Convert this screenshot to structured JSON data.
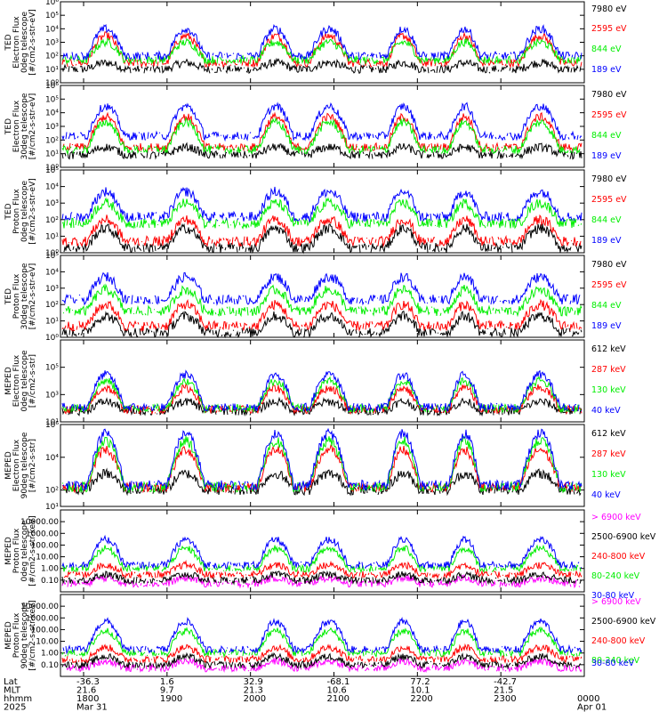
{
  "colors": {
    "blue": "#0000ff",
    "red": "#ff0000",
    "green": "#00ee00",
    "black": "#000000",
    "magenta": "#ff00ff"
  },
  "chart_data": [
    {
      "type": "line",
      "ylabel": [
        "TED",
        "Electron Flux",
        "0deg telescope",
        "[#/cm2-s-str-eV]"
      ],
      "scale": "log",
      "ylim": [
        1,
        1000000
      ],
      "ticks": [
        {
          "v": 1,
          "label": "10⁰"
        },
        {
          "v": 10,
          "label": "10¹"
        },
        {
          "v": 100,
          "label": "10²"
        },
        {
          "v": 1000,
          "label": "10³"
        },
        {
          "v": 10000,
          "label": "10⁴"
        },
        {
          "v": 100000,
          "label": "10⁵"
        },
        {
          "v": 1000000,
          "label": "10⁶"
        }
      ],
      "series": [
        {
          "name": "7980 eV",
          "color": "black",
          "base": 10,
          "peak": 30
        },
        {
          "name": "2595 eV",
          "color": "red",
          "base": 30,
          "peak": 3000
        },
        {
          "name": "844 eV",
          "color": "green",
          "base": 50,
          "peak": 1000
        },
        {
          "name": "189 eV",
          "color": "blue",
          "base": 100,
          "peak": 10000
        }
      ]
    },
    {
      "type": "line",
      "ylabel": [
        "TED",
        "Electron Flux",
        "30deg telescope",
        "[#/cm2-s-str-eV]"
      ],
      "scale": "log",
      "ylim": [
        1,
        1000000
      ],
      "ticks": [
        {
          "v": 1,
          "label": "10⁰"
        },
        {
          "v": 10,
          "label": "10¹"
        },
        {
          "v": 100,
          "label": "10²"
        },
        {
          "v": 1000,
          "label": "10³"
        },
        {
          "v": 10000,
          "label": "10⁴"
        },
        {
          "v": 100000,
          "label": "10⁵"
        },
        {
          "v": 1000000,
          "label": "10⁶"
        }
      ],
      "series": [
        {
          "name": "7980 eV",
          "color": "black",
          "base": 8,
          "peak": 30
        },
        {
          "name": "2595 eV",
          "color": "red",
          "base": 30,
          "peak": 5000
        },
        {
          "name": "844 eV",
          "color": "green",
          "base": 20,
          "peak": 2000
        },
        {
          "name": "189 eV",
          "color": "blue",
          "base": 200,
          "peak": 30000
        }
      ]
    },
    {
      "type": "line",
      "ylabel": [
        "TED",
        "Proton Flux",
        "0deg telescope",
        "[#/cm2-s-str-eV]"
      ],
      "scale": "log",
      "ylim": [
        1,
        100000
      ],
      "ticks": [
        {
          "v": 1,
          "label": "10⁰"
        },
        {
          "v": 10,
          "label": "10¹"
        },
        {
          "v": 100,
          "label": "10²"
        },
        {
          "v": 1000,
          "label": "10³"
        },
        {
          "v": 10000,
          "label": "10⁴"
        },
        {
          "v": 100000,
          "label": "10⁵"
        }
      ],
      "series": [
        {
          "name": "7980 eV",
          "color": "black",
          "base": 2,
          "peak": 30
        },
        {
          "name": "2595 eV",
          "color": "red",
          "base": 5,
          "peak": 100
        },
        {
          "name": "844 eV",
          "color": "green",
          "base": 60,
          "peak": 1000
        },
        {
          "name": "189 eV",
          "color": "blue",
          "base": 150,
          "peak": 5000
        }
      ]
    },
    {
      "type": "line",
      "ylabel": [
        "TED",
        "Proton Flux",
        "30deg telescope",
        "[#/cm2-s-str-eV]"
      ],
      "scale": "log",
      "ylim": [
        1,
        100000
      ],
      "ticks": [
        {
          "v": 1,
          "label": "10⁰"
        },
        {
          "v": 10,
          "label": "10¹"
        },
        {
          "v": 100,
          "label": "10²"
        },
        {
          "v": 1000,
          "label": "10³"
        },
        {
          "v": 10000,
          "label": "10⁴"
        },
        {
          "v": 100000,
          "label": "10⁵"
        }
      ],
      "series": [
        {
          "name": "7980 eV",
          "color": "black",
          "base": 2,
          "peak": 20
        },
        {
          "name": "2595 eV",
          "color": "red",
          "base": 5,
          "peak": 100
        },
        {
          "name": "844 eV",
          "color": "green",
          "base": 40,
          "peak": 800
        },
        {
          "name": "189 eV",
          "color": "blue",
          "base": 200,
          "peak": 5000
        }
      ]
    },
    {
      "type": "line",
      "ylabel": [
        "MEPED",
        "Electron Flux",
        "0deg telescope",
        "[#/cm2-s-str]"
      ],
      "scale": "log",
      "ylim": [
        10,
        10000000
      ],
      "ticks": [
        {
          "v": 10,
          "label": "10¹"
        },
        {
          "v": 1000,
          "label": "10³"
        },
        {
          "v": 100000,
          "label": "10⁵"
        }
      ],
      "series": [
        {
          "name": "612 keV",
          "color": "black",
          "base": 60,
          "peak": 300
        },
        {
          "name": "287 keV",
          "color": "red",
          "base": 80,
          "peak": 3000
        },
        {
          "name": "130 keV",
          "color": "green",
          "base": 100,
          "peak": 10000
        },
        {
          "name": "40 keV",
          "color": "blue",
          "base": 120,
          "peak": 30000
        }
      ]
    },
    {
      "type": "line",
      "ylabel": [
        "MEPED",
        "Electron Flux",
        "90deg telescope",
        "[#/cm2-s-str]"
      ],
      "scale": "log",
      "ylim": [
        10,
        1000000
      ],
      "ticks": [
        {
          "v": 10,
          "label": "10¹"
        },
        {
          "v": 100,
          "label": "10²"
        },
        {
          "v": 10000,
          "label": "10⁴"
        },
        {
          "v": 1000000,
          "label": "10⁶"
        }
      ],
      "series": [
        {
          "name": "612 keV",
          "color": "black",
          "base": 100,
          "peak": 1000
        },
        {
          "name": "287 keV",
          "color": "red",
          "base": 150,
          "peak": 30000
        },
        {
          "name": "130 keV",
          "color": "green",
          "base": 150,
          "peak": 100000
        },
        {
          "name": "40 keV",
          "color": "blue",
          "base": 200,
          "peak": 300000
        }
      ]
    },
    {
      "type": "line",
      "ylabel": [
        "MEPED",
        "Proton Flux",
        "0deg telescope",
        "[#/cm2-s-str-keV]"
      ],
      "scale": "log",
      "ylim": [
        0.01,
        100000
      ],
      "ticks": [
        {
          "v": 0.1,
          "label": "0.10"
        },
        {
          "v": 1,
          "label": "1.00"
        },
        {
          "v": 10,
          "label": "10.00"
        },
        {
          "v": 100,
          "label": "100.00"
        },
        {
          "v": 1000,
          "label": "1000.00"
        },
        {
          "v": 10000,
          "label": "10000.00"
        }
      ],
      "series": [
        {
          "name": "> 6900 keV",
          "color": "magenta",
          "base": 0.05,
          "peak": 0.15
        },
        {
          "name": "2500-6900 keV",
          "color": "black",
          "base": 0.1,
          "peak": 0.3
        },
        {
          "name": "240-800 keV",
          "color": "red",
          "base": 0.3,
          "peak": 2
        },
        {
          "name": "80-240 keV",
          "color": "green",
          "base": 1,
          "peak": 50
        },
        {
          "name": "30-80 keV",
          "color": "blue",
          "base": 2,
          "peak": 300
        }
      ]
    },
    {
      "type": "line",
      "ylabel": [
        "MEPED",
        "Proton Flux",
        "90deg telescope",
        "[#/cm2-s-str-keV]"
      ],
      "scale": "log",
      "ylim": [
        0.01,
        100000
      ],
      "ticks": [
        {
          "v": 0.1,
          "label": "0.10"
        },
        {
          "v": 1,
          "label": "1.00"
        },
        {
          "v": 10,
          "label": "10.00"
        },
        {
          "v": 100,
          "label": "100.00"
        },
        {
          "v": 1000,
          "label": "1000.00"
        },
        {
          "v": 10000,
          "label": "10000.00"
        }
      ],
      "series": [
        {
          "name": "> 6900 keV",
          "color": "magenta",
          "base": 0.05,
          "peak": 0.2
        },
        {
          "name": "2500-6900 keV",
          "color": "black",
          "base": 0.1,
          "peak": 0.5
        },
        {
          "name": "240-800 keV",
          "color": "red",
          "base": 0.3,
          "peak": 3
        },
        {
          "name": "80-240 keV",
          "color": "green",
          "base": 1,
          "peak": 80
        },
        {
          "name": "30-80 keV",
          "color": "blue",
          "base": 2,
          "peak": 500
        }
      ]
    }
  ],
  "footer": {
    "rows": [
      {
        "label": "Lat",
        "values": [
          "-36.3",
          "1.6",
          "32.9",
          "-68.1",
          "77.2",
          "-42.7",
          ""
        ]
      },
      {
        "label": "MLT",
        "values": [
          "21.6",
          "9.7",
          "21.3",
          "10.6",
          "10.1",
          "21.5",
          ""
        ]
      },
      {
        "label": "hhmm",
        "values": [
          "1800",
          "1900",
          "2000",
          "2100",
          "2200",
          "2300",
          "0000"
        ]
      },
      {
        "label": "2025",
        "values": [
          "Mar 31",
          "",
          "",
          "",
          "",
          "",
          "Apr 01"
        ]
      }
    ]
  }
}
